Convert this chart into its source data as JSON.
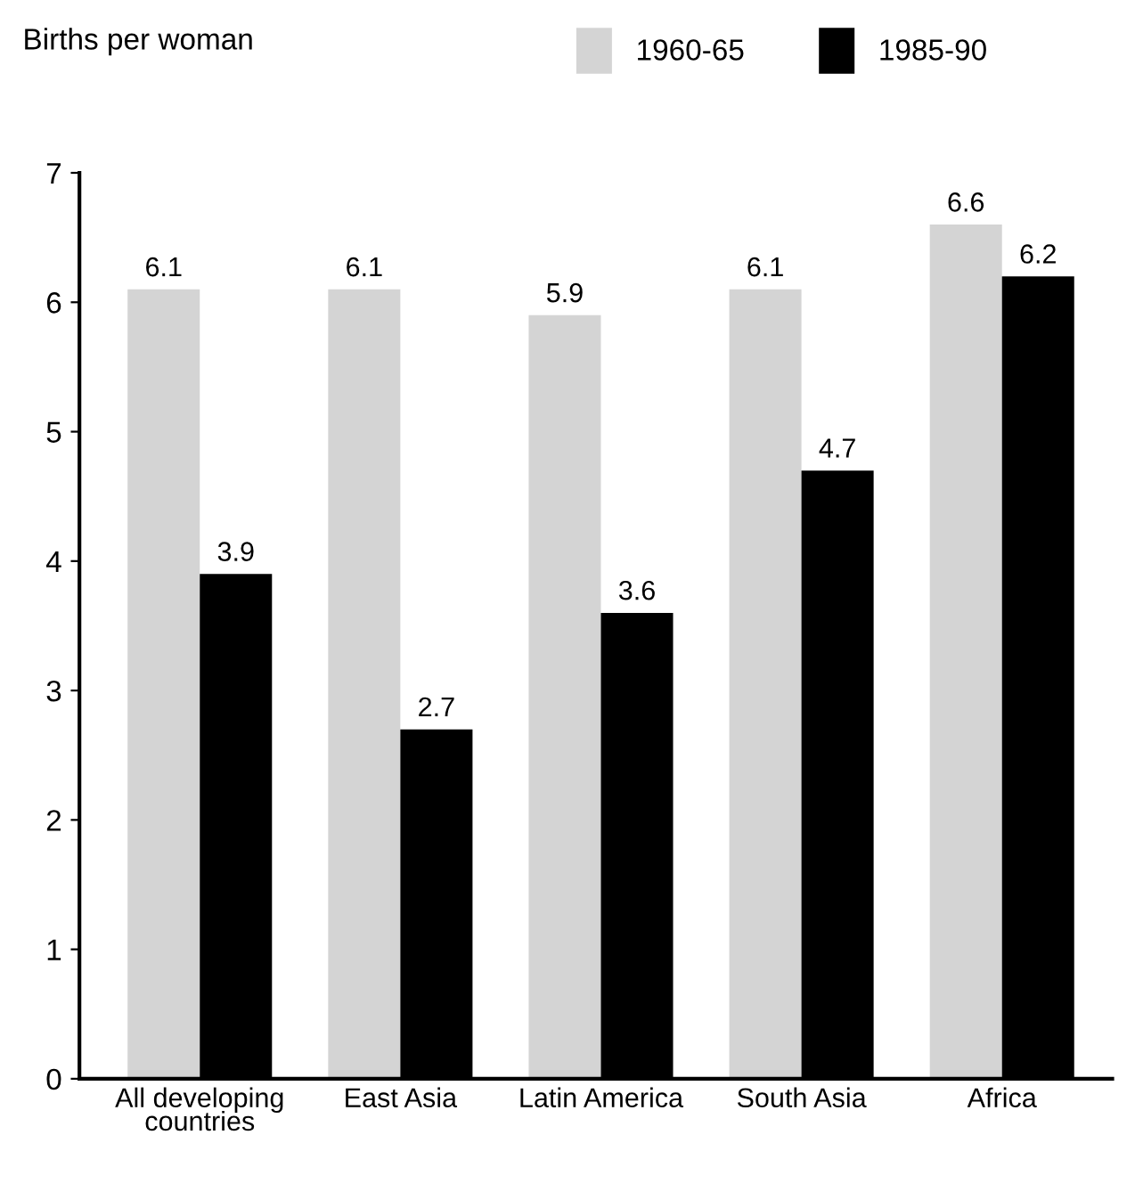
{
  "chart_data": {
    "type": "bar",
    "ylabel": "Births per woman",
    "categories": [
      "All developing\ncountries",
      "East Asia",
      "Latin America",
      "South Asia",
      "Africa"
    ],
    "series": [
      {
        "name": "1960-65",
        "color": "#d4d4d4",
        "values": [
          6.1,
          6.1,
          5.9,
          6.1,
          6.6
        ]
      },
      {
        "name": "1985-90",
        "color": "#000000",
        "values": [
          3.9,
          2.7,
          3.6,
          4.7,
          6.2
        ]
      }
    ],
    "ylim": [
      0,
      7
    ],
    "yticks": [
      0,
      1,
      2,
      3,
      4,
      5,
      6,
      7
    ],
    "data_labels": true,
    "grid": false,
    "legend": "top"
  }
}
